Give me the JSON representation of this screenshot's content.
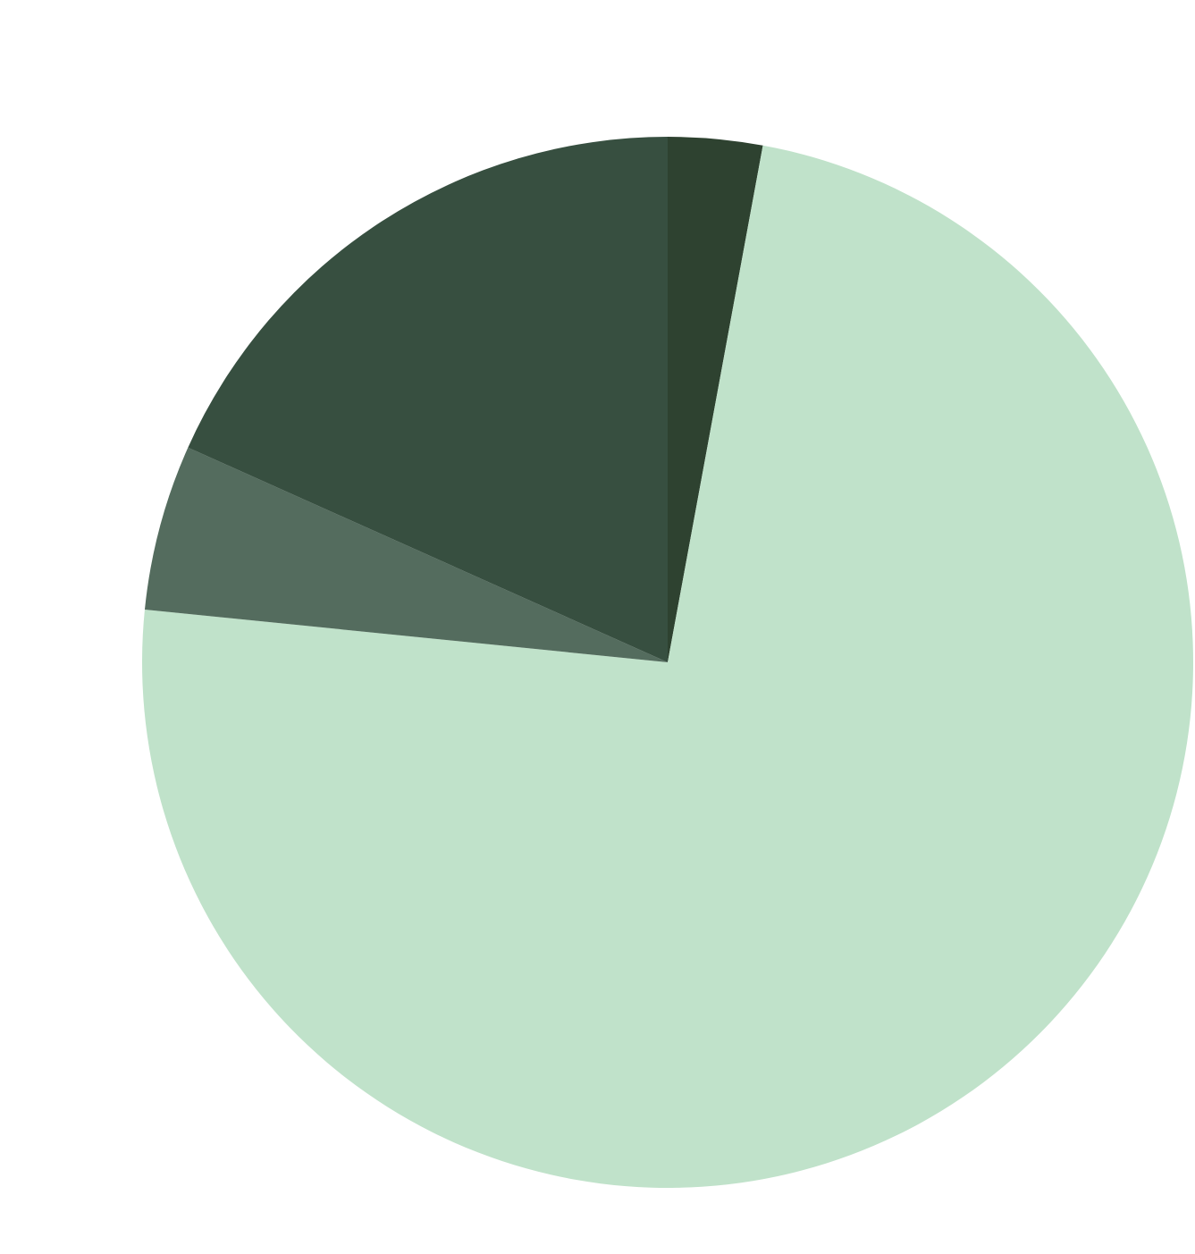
{
  "chart_data": {
    "type": "pie",
    "start_angle": "top",
    "direction": "clockwise",
    "legend": "none",
    "slices": [
      {
        "value": 2.9,
        "color": "#2e4230"
      },
      {
        "value": 73.7,
        "color": "#c0e2ca"
      },
      {
        "value": 5.1,
        "color": "#546c5e"
      },
      {
        "value": 18.3,
        "color": "#374f40"
      }
    ]
  }
}
